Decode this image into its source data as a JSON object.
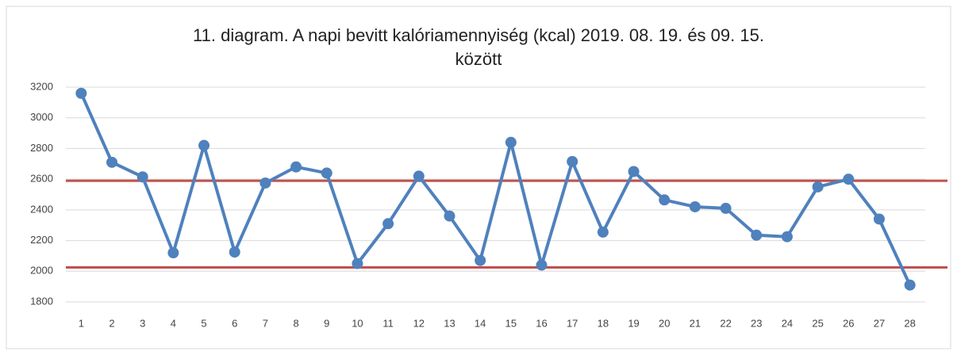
{
  "chart_data": {
    "type": "line",
    "title": "11. diagram. A napi bevitt kalóriamennyiség (kcal) 2019. 08. 19. és 09. 15. között",
    "categories": [
      "1",
      "2",
      "3",
      "4",
      "5",
      "6",
      "7",
      "8",
      "9",
      "10",
      "11",
      "12",
      "13",
      "14",
      "15",
      "16",
      "17",
      "18",
      "19",
      "20",
      "21",
      "22",
      "23",
      "24",
      "25",
      "26",
      "27",
      "28"
    ],
    "values": [
      3160,
      2710,
      2615,
      2120,
      2820,
      2125,
      2575,
      2680,
      2640,
      2050,
      2310,
      2620,
      2360,
      2070,
      2840,
      2040,
      2715,
      2255,
      2650,
      2465,
      2420,
      2410,
      2235,
      2225,
      2550,
      2600,
      2340,
      1910
    ],
    "color": "#4f81bd",
    "reference_lines": [
      {
        "value": 2590,
        "color": "#c0504d"
      },
      {
        "value": 2025,
        "color": "#c0504d"
      }
    ],
    "ylim": [
      1800,
      3200
    ],
    "yticks": [
      1800,
      2000,
      2200,
      2400,
      2600,
      2800,
      3000,
      3200
    ],
    "grid": true
  }
}
